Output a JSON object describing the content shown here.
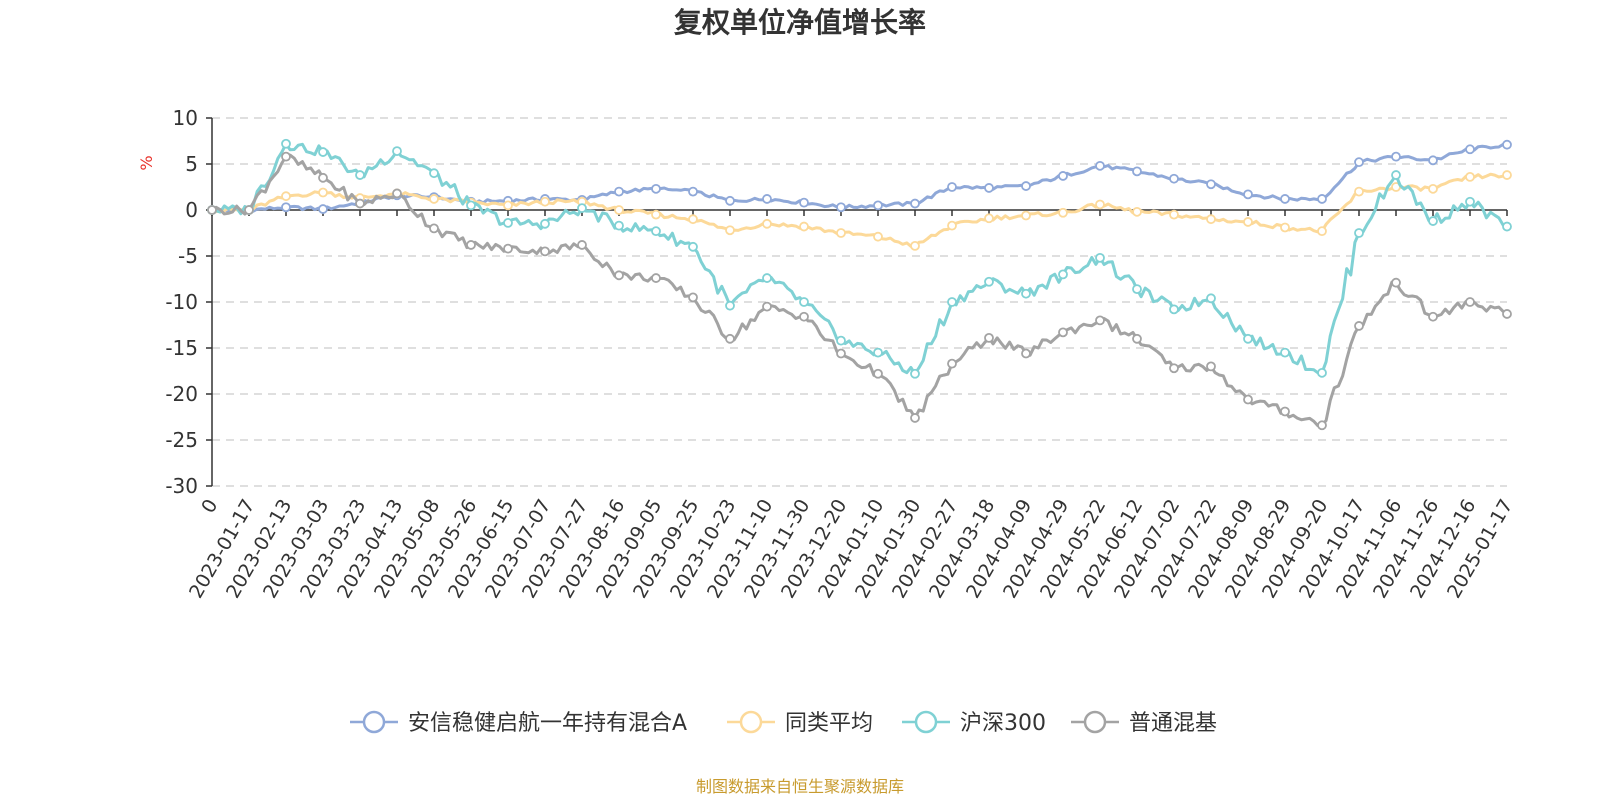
{
  "chart_data": {
    "type": "line",
    "title": "复权单位净值增长率",
    "ylabel": "%",
    "ylim": [
      -30,
      10
    ],
    "yticks": [
      10,
      5,
      0,
      -5,
      -10,
      -15,
      -20,
      -25,
      -30
    ],
    "grid": true,
    "legend_position": "bottom",
    "x_first_label": "0",
    "x": [
      "2023-01-17",
      "2023-02-13",
      "2023-03-03",
      "2023-03-23",
      "2023-04-13",
      "2023-05-08",
      "2023-05-26",
      "2023-06-15",
      "2023-07-07",
      "2023-07-27",
      "2023-08-16",
      "2023-09-05",
      "2023-09-25",
      "2023-10-23",
      "2023-11-10",
      "2023-11-30",
      "2023-12-20",
      "2024-01-10",
      "2024-01-30",
      "2024-02-27",
      "2024-03-18",
      "2024-04-09",
      "2024-04-29",
      "2024-05-22",
      "2024-06-12",
      "2024-07-02",
      "2024-07-22",
      "2024-08-09",
      "2024-08-29",
      "2024-09-20",
      "2024-10-17",
      "2024-11-06",
      "2024-11-26",
      "2024-12-16",
      "2025-01-17"
    ],
    "series": [
      {
        "name": "安信稳健启航一年持有混合A",
        "color": "#8fa8d8",
        "values": [
          0,
          0.3,
          0.1,
          0.8,
          1.6,
          1.4,
          0.9,
          1.0,
          1.2,
          1.1,
          2.0,
          2.3,
          2.0,
          1.0,
          1.2,
          0.8,
          0.3,
          0.5,
          0.7,
          2.5,
          2.4,
          2.6,
          3.7,
          4.8,
          4.2,
          3.4,
          2.8,
          1.7,
          1.2,
          1.2,
          5.2,
          5.8,
          5.4,
          6.6,
          7.1
        ]
      },
      {
        "name": "同类平均",
        "color": "#fcd999",
        "values": [
          0,
          1.5,
          1.9,
          1.3,
          1.8,
          1.2,
          0.8,
          0.5,
          0.9,
          0.9,
          0.0,
          -0.5,
          -1.0,
          -2.2,
          -1.5,
          -1.8,
          -2.5,
          -2.9,
          -3.9,
          -1.7,
          -0.9,
          -0.6,
          -0.3,
          0.6,
          -0.2,
          -0.5,
          -1.0,
          -1.3,
          -1.9,
          -2.3,
          2.0,
          2.5,
          2.3,
          3.6,
          3.8
        ]
      },
      {
        "name": "沪深300",
        "color": "#7fd1d4",
        "values": [
          0,
          7.2,
          6.3,
          3.8,
          6.4,
          4.0,
          0.5,
          -1.4,
          -1.5,
          0.2,
          -1.7,
          -2.3,
          -4.0,
          -10.4,
          -7.4,
          -10.0,
          -14.2,
          -15.5,
          -17.8,
          -10.0,
          -7.8,
          -9.1,
          -7.0,
          -5.2,
          -8.6,
          -10.8,
          -9.6,
          -14.0,
          -15.5,
          -17.7,
          -2.5,
          3.8,
          -1.2,
          0.9,
          -1.8
        ]
      },
      {
        "name": "普通混基",
        "color": "#a3a3a3",
        "values": [
          0,
          5.8,
          3.5,
          0.7,
          1.8,
          -2.0,
          -3.8,
          -4.2,
          -4.5,
          -3.8,
          -7.1,
          -7.4,
          -9.5,
          -14.0,
          -10.5,
          -11.6,
          -15.6,
          -17.8,
          -22.6,
          -16.7,
          -13.9,
          -15.6,
          -13.3,
          -12.0,
          -14.0,
          -17.2,
          -17.0,
          -20.6,
          -21.9,
          -23.4,
          -12.6,
          -7.9,
          -11.6,
          -10.0,
          -11.3
        ]
      }
    ],
    "source_note": "制图数据来自恒生聚源数据库"
  }
}
